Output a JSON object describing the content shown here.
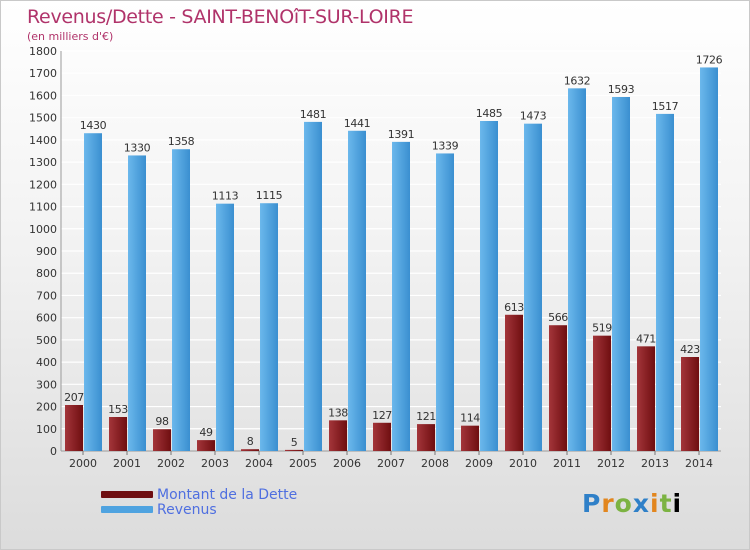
{
  "title": "Revenus/Dette - SAINT-BENOîT-SUR-LOIRE",
  "subtitle": "(en milliers d'€)",
  "logo": {
    "text": "Proxiti"
  },
  "colors": {
    "dette": "#6f0e10",
    "revenus": "#4fa3e0",
    "title": "#b0336a",
    "legend_text": "#4f6fe0"
  },
  "chart_data": {
    "type": "bar",
    "title": "Revenus/Dette - SAINT-BENOîT-SUR-LOIRE",
    "ylabel": "(en milliers d'€)",
    "categories": [
      "2000",
      "2001",
      "2002",
      "2003",
      "2004",
      "2005",
      "2006",
      "2007",
      "2008",
      "2009",
      "2010",
      "2011",
      "2012",
      "2013",
      "2014"
    ],
    "series": [
      {
        "name": "Montant de la Dette",
        "values": [
          207,
          153,
          98,
          49,
          8,
          5,
          138,
          127,
          121,
          114,
          613,
          566,
          519,
          471,
          423
        ],
        "labels": [
          "207",
          "153",
          "98",
          "49",
          "8",
          "5",
          "138",
          "127",
          "121",
          "114",
          "613",
          "566",
          "519",
          "471",
          "423"
        ]
      },
      {
        "name": "Revenus",
        "values": [
          1430,
          1330,
          1358,
          1113,
          1115,
          1481,
          1441,
          1391,
          1339,
          1485,
          1473,
          1632,
          1593,
          1517,
          1726
        ],
        "labels": [
          "1430",
          "1330",
          "1358",
          "1113",
          "1115",
          "1481",
          "1441",
          "1391",
          "1339",
          "1485",
          "1473",
          "1632",
          "1593",
          "1517",
          "1726"
        ]
      }
    ],
    "yticks": [
      "0",
      "100",
      "200",
      "300",
      "400",
      "500",
      "600",
      "700",
      "800",
      "900",
      "1000",
      "1100",
      "1200",
      "1300",
      "1400",
      "1500",
      "1600",
      "1700",
      "1800"
    ],
    "ylim": [
      0,
      1800
    ],
    "grid": true,
    "legend_position": "bottom-left"
  }
}
